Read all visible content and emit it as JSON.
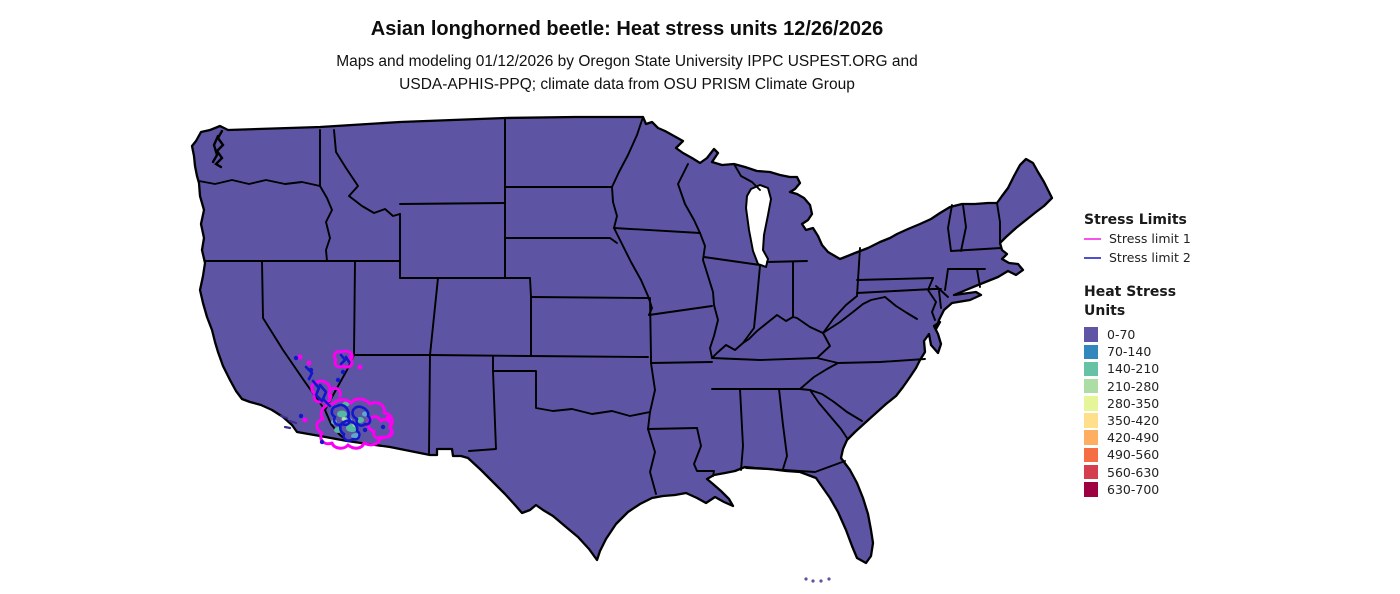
{
  "header": {
    "title": "Asian longhorned beetle: Heat stress units 12/26/2026",
    "subtitle_line1": "Maps and modeling 01/12/2026 by Oregon State University IPPC USPEST.ORG and",
    "subtitle_line2": "USDA-APHIS-PPQ; climate data from OSU PRISM Climate Group"
  },
  "legend_stress_limits": {
    "title": "Stress Limits",
    "items": [
      {
        "label": "Stress limit 1",
        "color": "#f653ec"
      },
      {
        "label": "Stress limit 2",
        "color": "#4f4fd0"
      }
    ]
  },
  "legend_heat_stress": {
    "title_line1": "Heat Stress",
    "title_line2": "Units",
    "classes": [
      {
        "range": "0-70",
        "color": "#5e55a4"
      },
      {
        "range": "70-140",
        "color": "#3288bd"
      },
      {
        "range": "140-210",
        "color": "#66c2a5"
      },
      {
        "range": "210-280",
        "color": "#abdda4"
      },
      {
        "range": "280-350",
        "color": "#e6f598"
      },
      {
        "range": "350-420",
        "color": "#fee08b"
      },
      {
        "range": "420-490",
        "color": "#fdae61"
      },
      {
        "range": "490-560",
        "color": "#f46d43"
      },
      {
        "range": "560-630",
        "color": "#d53e4f"
      },
      {
        "range": "630-700",
        "color": "#9e0142"
      }
    ]
  },
  "map": {
    "land_fill": "#5d54a3",
    "border_color": "#000000",
    "stress_limit1_color": "#fb00f3",
    "stress_limit2_color": "#1217cb",
    "water_color": "#ffffff"
  }
}
